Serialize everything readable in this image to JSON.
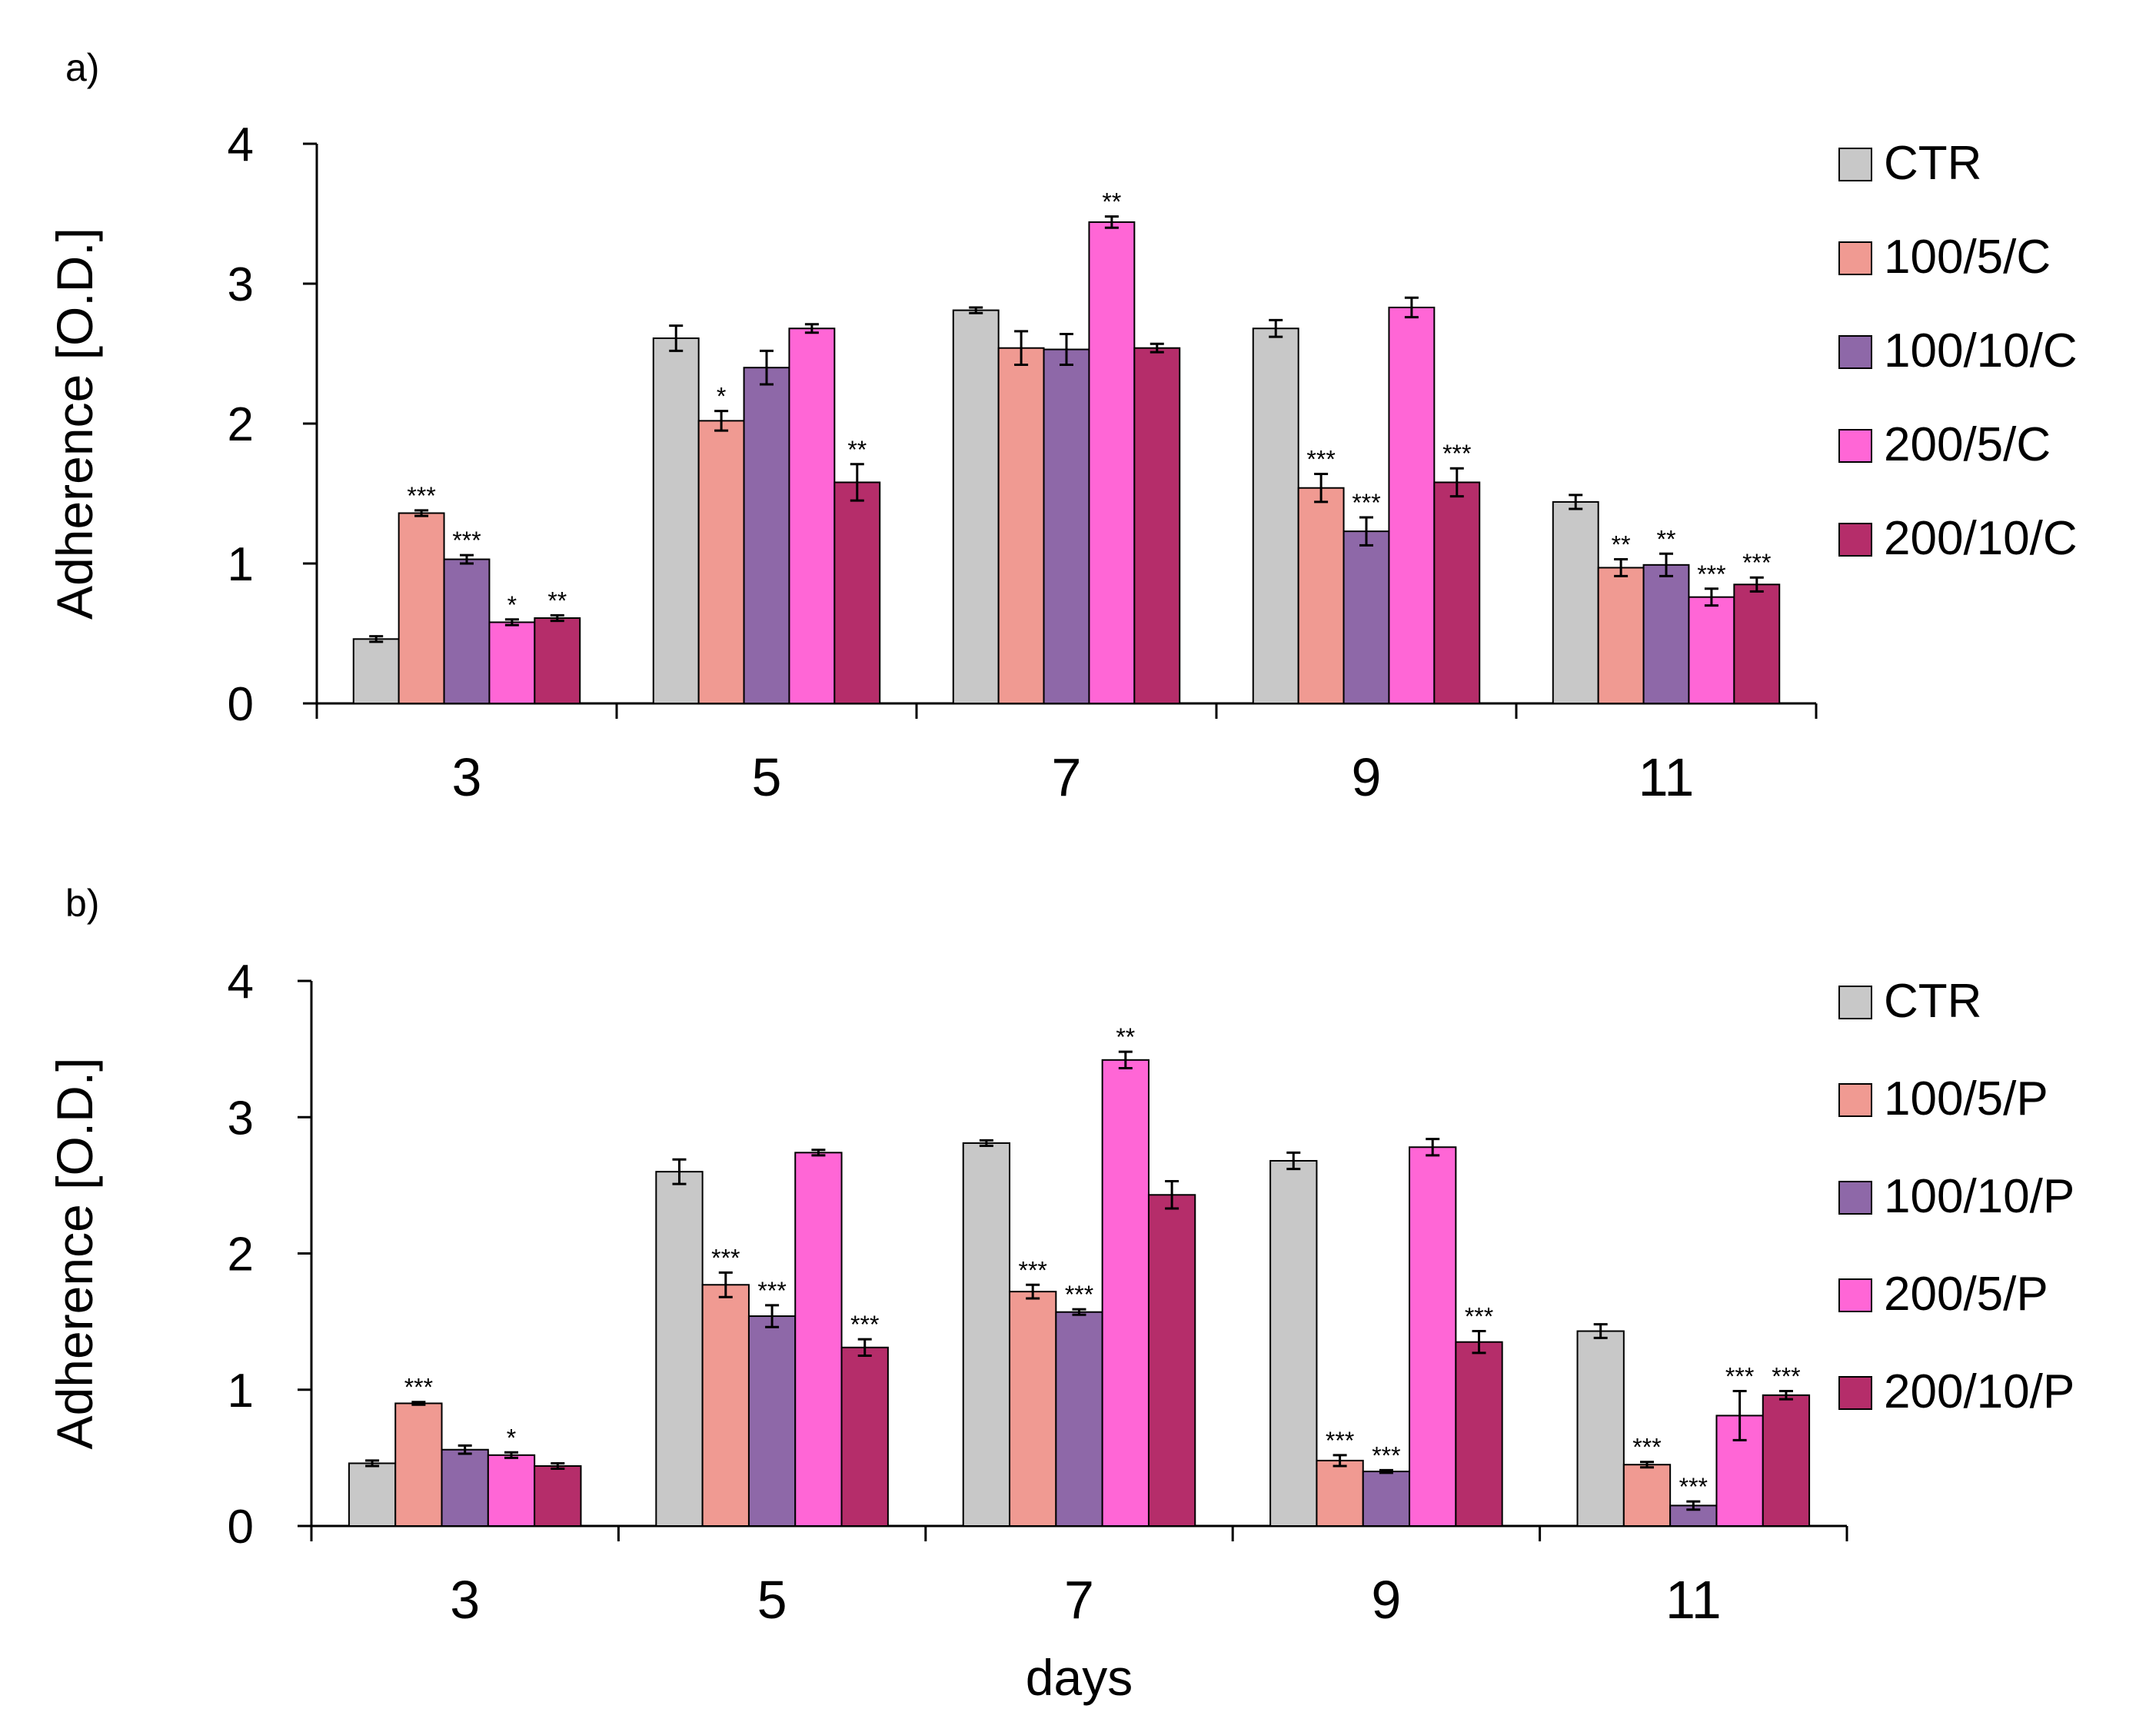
{
  "chart_data": [
    {
      "type": "bar",
      "panel_label": "a)",
      "categories": [
        "3",
        "5",
        "7",
        "9",
        "11"
      ],
      "ylabel": "Adherence [O.D.]",
      "xlabel": "",
      "ylim": [
        0,
        4
      ],
      "yticks": [
        "0",
        "1",
        "2",
        "3",
        "4"
      ],
      "series": [
        {
          "name": "CTR",
          "color": "#c8c8c8",
          "values": [
            0.46,
            2.61,
            2.81,
            2.68,
            1.44
          ],
          "errors": [
            0.02,
            0.09,
            0.02,
            0.06,
            0.05
          ],
          "sig": [
            "",
            "",
            "",
            "",
            ""
          ]
        },
        {
          "name": "100/5/C",
          "color": "#f09a92",
          "values": [
            1.36,
            2.02,
            2.54,
            1.54,
            0.97
          ],
          "errors": [
            0.02,
            0.07,
            0.12,
            0.1,
            0.06
          ],
          "sig": [
            "***",
            "*",
            "",
            "***",
            "**"
          ]
        },
        {
          "name": "100/10/C",
          "color": "#8e68a8",
          "values": [
            1.03,
            2.4,
            2.53,
            1.23,
            0.99
          ],
          "errors": [
            0.03,
            0.12,
            0.11,
            0.1,
            0.08
          ],
          "sig": [
            "***",
            "",
            "",
            "***",
            "**"
          ]
        },
        {
          "name": "200/5/C",
          "color": "#ff66d6",
          "values": [
            0.58,
            2.68,
            3.44,
            2.83,
            0.76
          ],
          "errors": [
            0.02,
            0.03,
            0.04,
            0.07,
            0.06
          ],
          "sig": [
            "*",
            "",
            "**",
            "",
            "***"
          ]
        },
        {
          "name": "200/10/C",
          "color": "#b52d6a",
          "values": [
            0.61,
            1.58,
            2.54,
            1.58,
            0.85
          ],
          "errors": [
            0.02,
            0.13,
            0.03,
            0.1,
            0.05
          ],
          "sig": [
            "**",
            "**",
            "",
            "***",
            "***"
          ]
        }
      ]
    },
    {
      "type": "bar",
      "panel_label": "b)",
      "categories": [
        "3",
        "5",
        "7",
        "9",
        "11"
      ],
      "ylabel": "Adherence [O.D.]",
      "xlabel": "days",
      "ylim": [
        0,
        4
      ],
      "yticks": [
        "0",
        "1",
        "2",
        "3",
        "4"
      ],
      "series": [
        {
          "name": "CTR",
          "color": "#c8c8c8",
          "values": [
            0.46,
            2.6,
            2.81,
            2.68,
            1.43
          ],
          "errors": [
            0.02,
            0.09,
            0.02,
            0.06,
            0.05
          ],
          "sig": [
            "",
            "",
            "",
            "",
            ""
          ]
        },
        {
          "name": "100/5/P",
          "color": "#f09a92",
          "values": [
            0.9,
            1.77,
            1.72,
            0.48,
            0.45
          ],
          "errors": [
            0.01,
            0.09,
            0.05,
            0.04,
            0.02
          ],
          "sig": [
            "***",
            "***",
            "***",
            "***",
            "***"
          ]
        },
        {
          "name": "100/10/P",
          "color": "#8e68a8",
          "values": [
            0.56,
            1.54,
            1.57,
            0.4,
            0.15
          ],
          "errors": [
            0.03,
            0.08,
            0.02,
            0.01,
            0.03
          ],
          "sig": [
            "",
            "***",
            "***",
            "***",
            "***"
          ]
        },
        {
          "name": "200/5/P",
          "color": "#ff66d6",
          "values": [
            0.52,
            2.74,
            3.42,
            2.78,
            0.81
          ],
          "errors": [
            0.02,
            0.02,
            0.06,
            0.06,
            0.18
          ],
          "sig": [
            "*",
            "",
            "**",
            "",
            "***"
          ]
        },
        {
          "name": "200/10/P",
          "color": "#b52d6a",
          "values": [
            0.44,
            1.31,
            2.43,
            1.35,
            0.96
          ],
          "errors": [
            0.02,
            0.06,
            0.1,
            0.08,
            0.03
          ],
          "sig": [
            "",
            "***",
            "",
            "***",
            "***"
          ]
        }
      ]
    }
  ]
}
